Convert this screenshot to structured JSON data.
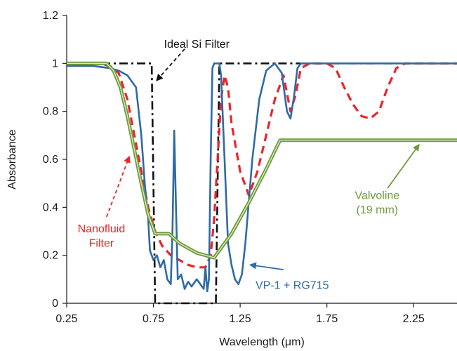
{
  "chart_data": {
    "type": "line",
    "title": "",
    "xlabel": "Wavelength (μm)",
    "ylabel": "Absorbance",
    "xlim": [
      0.25,
      2.5
    ],
    "ylim": [
      0,
      1.2
    ],
    "x_ticks": [
      0.25,
      0.75,
      1.25,
      1.75,
      2.25
    ],
    "x_tick_labels": [
      "0.25",
      "0.75",
      "1.25",
      "1.75",
      "2.25"
    ],
    "y_ticks": [
      0,
      0.2,
      0.4,
      0.6,
      0.8,
      1,
      1.2
    ],
    "y_tick_labels": [
      "0",
      "0.2",
      "0.4",
      "0.6",
      "0.8",
      "1",
      "1.2"
    ],
    "grid": false,
    "legend": "none",
    "series": [
      {
        "name": "Ideal Si Filter",
        "color": "#111111",
        "style": "dash-dot",
        "points": [
          [
            0.25,
            1.0
          ],
          [
            0.74,
            1.0
          ],
          [
            0.76,
            0.0
          ],
          [
            1.11,
            0.0
          ],
          [
            1.13,
            1.0
          ],
          [
            2.5,
            1.0
          ]
        ]
      },
      {
        "name": "Nanofluid Filter",
        "color": "#e8262a",
        "style": "dashed",
        "points": [
          [
            0.25,
            1.0
          ],
          [
            0.42,
            1.0
          ],
          [
            0.5,
            0.99
          ],
          [
            0.55,
            0.96
          ],
          [
            0.6,
            0.85
          ],
          [
            0.64,
            0.7
          ],
          [
            0.68,
            0.55
          ],
          [
            0.72,
            0.4
          ],
          [
            0.76,
            0.3
          ],
          [
            0.8,
            0.24
          ],
          [
            0.85,
            0.2
          ],
          [
            0.9,
            0.18
          ],
          [
            0.95,
            0.16
          ],
          [
            1.0,
            0.15
          ],
          [
            1.05,
            0.15
          ],
          [
            1.08,
            0.2
          ],
          [
            1.1,
            0.35
          ],
          [
            1.12,
            0.6
          ],
          [
            1.14,
            0.85
          ],
          [
            1.16,
            0.95
          ],
          [
            1.18,
            0.9
          ],
          [
            1.2,
            0.75
          ],
          [
            1.25,
            0.55
          ],
          [
            1.3,
            0.45
          ],
          [
            1.35,
            0.55
          ],
          [
            1.4,
            0.7
          ],
          [
            1.45,
            0.85
          ],
          [
            1.5,
            0.95
          ],
          [
            1.54,
            0.8
          ],
          [
            1.57,
            0.87
          ],
          [
            1.6,
            0.98
          ],
          [
            1.65,
            1.0
          ],
          [
            1.75,
            1.0
          ],
          [
            1.8,
            0.98
          ],
          [
            1.85,
            0.9
          ],
          [
            1.9,
            0.83
          ],
          [
            1.95,
            0.78
          ],
          [
            2.0,
            0.77
          ],
          [
            2.05,
            0.8
          ],
          [
            2.1,
            0.9
          ],
          [
            2.15,
            0.98
          ],
          [
            2.2,
            1.0
          ],
          [
            2.5,
            1.0
          ]
        ]
      },
      {
        "name": "VP-1 + RG715",
        "color": "#2e6aa8",
        "style": "solid",
        "points": [
          [
            0.25,
            0.99
          ],
          [
            0.4,
            0.99
          ],
          [
            0.5,
            0.98
          ],
          [
            0.55,
            0.97
          ],
          [
            0.6,
            0.95
          ],
          [
            0.65,
            0.9
          ],
          [
            0.68,
            0.7
          ],
          [
            0.7,
            0.5
          ],
          [
            0.72,
            0.35
          ],
          [
            0.73,
            0.22
          ],
          [
            0.75,
            0.18
          ],
          [
            0.77,
            0.2
          ],
          [
            0.79,
            0.15
          ],
          [
            0.81,
            0.18
          ],
          [
            0.83,
            0.1
          ],
          [
            0.85,
            0.08
          ],
          [
            0.86,
            0.3
          ],
          [
            0.87,
            0.72
          ],
          [
            0.88,
            0.4
          ],
          [
            0.89,
            0.1
          ],
          [
            0.91,
            0.12
          ],
          [
            0.93,
            0.06
          ],
          [
            0.95,
            0.09
          ],
          [
            0.97,
            0.07
          ],
          [
            1.0,
            0.1
          ],
          [
            1.02,
            0.08
          ],
          [
            1.04,
            0.06
          ],
          [
            1.05,
            0.15
          ],
          [
            1.06,
            0.05
          ],
          [
            1.07,
            0.1
          ],
          [
            1.08,
            0.6
          ],
          [
            1.09,
            0.98
          ],
          [
            1.1,
            1.0
          ],
          [
            1.13,
            1.0
          ],
          [
            1.14,
            0.95
          ],
          [
            1.16,
            0.6
          ],
          [
            1.18,
            0.25
          ],
          [
            1.2,
            0.16
          ],
          [
            1.22,
            0.1
          ],
          [
            1.24,
            0.08
          ],
          [
            1.26,
            0.12
          ],
          [
            1.28,
            0.25
          ],
          [
            1.32,
            0.6
          ],
          [
            1.36,
            0.85
          ],
          [
            1.4,
            0.97
          ],
          [
            1.45,
            1.0
          ],
          [
            1.49,
            0.96
          ],
          [
            1.52,
            0.8
          ],
          [
            1.54,
            0.77
          ],
          [
            1.56,
            0.86
          ],
          [
            1.58,
            0.98
          ],
          [
            1.6,
            1.0
          ],
          [
            2.5,
            1.0
          ]
        ]
      },
      {
        "name": "Valvoline (19 mm)",
        "color": "#6f9b3a",
        "style": "double",
        "points": [
          [
            0.25,
            1.0
          ],
          [
            0.48,
            1.0
          ],
          [
            0.52,
            0.97
          ],
          [
            0.56,
            0.9
          ],
          [
            0.6,
            0.78
          ],
          [
            0.64,
            0.64
          ],
          [
            0.68,
            0.5
          ],
          [
            0.72,
            0.37
          ],
          [
            0.76,
            0.29
          ],
          [
            0.84,
            0.29
          ],
          [
            0.9,
            0.25
          ],
          [
            1.0,
            0.21
          ],
          [
            1.1,
            0.19
          ],
          [
            1.2,
            0.29
          ],
          [
            1.3,
            0.42
          ],
          [
            1.4,
            0.56
          ],
          [
            1.48,
            0.68
          ],
          [
            2.5,
            0.68
          ]
        ]
      }
    ],
    "annotations": [
      {
        "text": "Ideal Si Filter",
        "x": 1.0,
        "y": 1.08,
        "color": "#111111"
      },
      {
        "text": "Nanofluid",
        "x": 0.45,
        "y": 0.31,
        "color": "#e8262a"
      },
      {
        "text": "Filter",
        "x": 0.45,
        "y": 0.25,
        "color": "#e8262a"
      },
      {
        "text": "VP-1 + RG715",
        "x": 1.55,
        "y": 0.075,
        "color": "#2e6aa8"
      },
      {
        "text": "Valvoline",
        "x": 2.04,
        "y": 0.45,
        "color": "#6f9b3a"
      },
      {
        "text": "(19 mm)",
        "x": 2.04,
        "y": 0.39,
        "color": "#6f9b3a"
      }
    ],
    "arrows": [
      {
        "from": [
          0.93,
          1.06
        ],
        "to": [
          0.77,
          0.93
        ],
        "color": "#111111",
        "style": "dashed"
      },
      {
        "from": [
          0.48,
          0.36
        ],
        "to": [
          0.61,
          0.61
        ],
        "color": "#e8262a",
        "style": "dashed"
      },
      {
        "from": [
          1.5,
          0.14
        ],
        "to": [
          1.31,
          0.16
        ],
        "color": "#2e6aa8",
        "style": "solid"
      },
      {
        "from": [
          2.1,
          0.48
        ],
        "to": [
          2.28,
          0.66
        ],
        "color": "#6f9b3a",
        "style": "solid"
      }
    ]
  }
}
